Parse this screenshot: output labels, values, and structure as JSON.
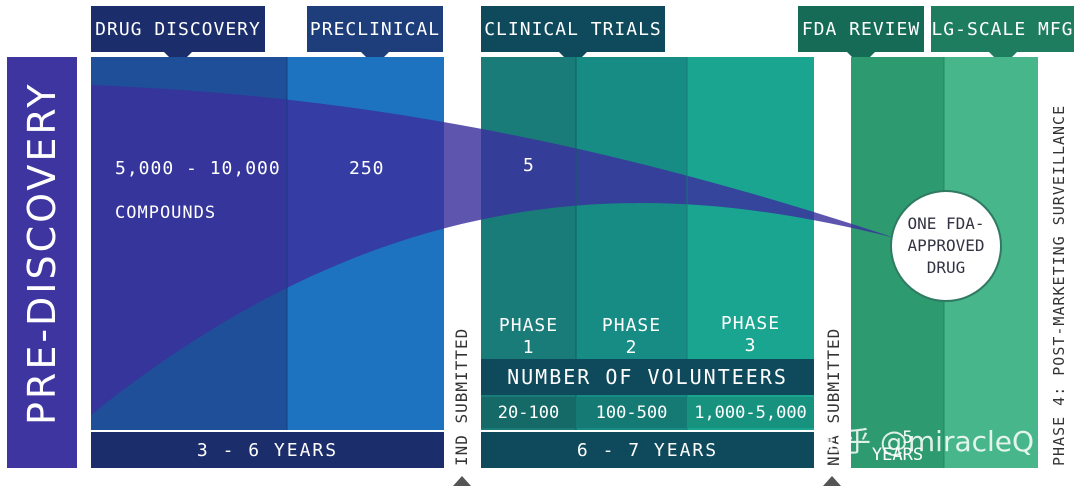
{
  "tabs": {
    "drug_discovery": "DRUG DISCOVERY",
    "preclinical": "PRECLINICAL",
    "clinical_trials": "CLINICAL TRIALS",
    "fda_review": "FDA REVIEW",
    "lg_scale_mfg": "LG-SCALE MFG"
  },
  "pre_discovery": "PRE-DISCOVERY",
  "discovery": {
    "count": "5,000 - 10,000",
    "unit": "COMPOUNDS"
  },
  "preclinical_count": "250",
  "clinical_count": "5",
  "approved": {
    "line1": "ONE FDA-",
    "line2": "APPROVED",
    "line3": "DRUG"
  },
  "phases": [
    {
      "line1": "PHASE",
      "line2": "1",
      "volunteers": "20-100"
    },
    {
      "line1": "PHASE",
      "line2": "2",
      "volunteers": "100-500"
    },
    {
      "line1": "PHASE",
      "line2": "3",
      "volunteers": "1,000-5,000"
    }
  ],
  "volunteers_header": "NUMBER OF VOLUNTEERS",
  "durations": {
    "discovery": "3 - 6 YEARS",
    "clinical": "6 - 7 YEARS",
    "review_num": "5",
    "review_unit": "YEARS"
  },
  "ind_submitted": "IND SUBMITTED",
  "nda_submitted": "NDA SUBMITTED",
  "phase4": "PHASE 4: POST-MARKETING SURVEILLANCE",
  "watermark": "知乎 @miracleQ",
  "colors": {
    "navy": "#1c2d6b",
    "discovery_blue": "#1f4f98",
    "preclinical_blue": "#1d73c0",
    "pre_purple": "#3f35a0",
    "clinical_dark": "#146c6a",
    "phase1": "#1a7c79",
    "phase2": "#178c84",
    "phase3": "#1aa590",
    "fda_green": "#2e9a6f",
    "mfg_green": "#47b68a"
  }
}
